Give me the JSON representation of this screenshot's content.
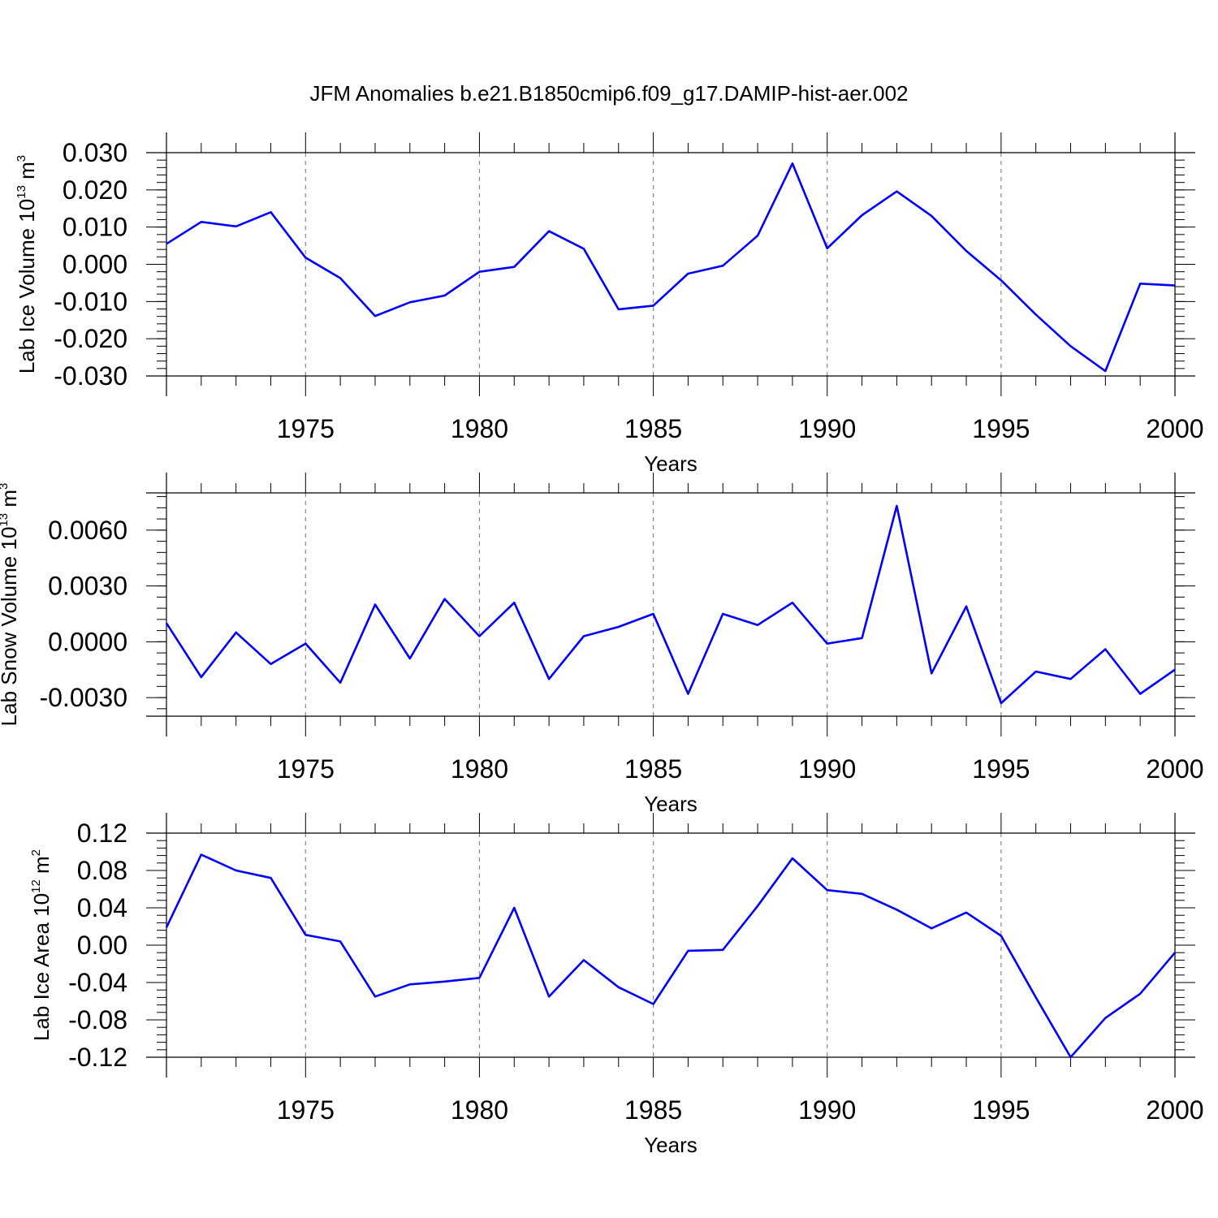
{
  "title": "JFM Anomalies b.e21.B1850cmip6.f09_g17.DAMIP-hist-aer.002",
  "colors": {
    "line": "#0000ff",
    "axis": "#000000",
    "grid": "#888888"
  },
  "chart_data": [
    {
      "type": "line",
      "xlabel": "Years",
      "ylabel": {
        "text": "Lab Ice Volume 10",
        "exp": "13",
        "unit": " m",
        "unit_exp": "3"
      },
      "xlim": [
        1971,
        2000
      ],
      "ylim": [
        -0.03,
        0.03
      ],
      "xticks": [
        1975,
        1980,
        1985,
        1990,
        1995,
        2000
      ],
      "ytick_labels": [
        "0.030",
        "0.020",
        "0.010",
        "0.000",
        "-0.010",
        "-0.020",
        "-0.030"
      ],
      "ytick_values": [
        0.03,
        0.02,
        0.01,
        0.0,
        -0.01,
        -0.02,
        -0.03
      ],
      "grid": "dashed vertical at major x ticks",
      "x": [
        1971,
        1972,
        1973,
        1974,
        1975,
        1976,
        1977,
        1978,
        1979,
        1980,
        1981,
        1982,
        1983,
        1984,
        1985,
        1986,
        1987,
        1988,
        1989,
        1990,
        1991,
        1992,
        1993,
        1994,
        1995,
        1996,
        1997,
        1998,
        1999,
        2000
      ],
      "y": [
        0.0055,
        0.0114,
        0.0102,
        0.014,
        0.0018,
        -0.0037,
        -0.0139,
        -0.0102,
        -0.0084,
        -0.002,
        -0.0007,
        0.0089,
        0.0042,
        -0.0121,
        -0.0111,
        -0.0025,
        -0.0004,
        0.0077,
        0.0271,
        0.0043,
        0.0132,
        0.0196,
        0.013,
        0.0036,
        -0.0043,
        -0.0135,
        -0.022,
        -0.0287,
        -0.0052,
        -0.0057
      ]
    },
    {
      "type": "line",
      "xlabel": "Years",
      "ylabel": {
        "text": "Lab Snow Volume 10",
        "exp": "13",
        "unit": " m",
        "unit_exp": "3"
      },
      "xlim": [
        1971,
        2000
      ],
      "ylim": [
        -0.004,
        0.008
      ],
      "xticks": [
        1975,
        1980,
        1985,
        1990,
        1995,
        2000
      ],
      "ytick_labels": [
        "0.0060",
        "0.0030",
        "0.0000",
        "-0.0030"
      ],
      "ytick_values": [
        0.006,
        0.003,
        0.0,
        -0.003
      ],
      "grid": "dashed vertical at major x ticks",
      "x": [
        1971,
        1972,
        1973,
        1974,
        1975,
        1976,
        1977,
        1978,
        1979,
        1980,
        1981,
        1982,
        1983,
        1984,
        1985,
        1986,
        1987,
        1988,
        1989,
        1990,
        1991,
        1992,
        1993,
        1994,
        1995,
        1996,
        1997,
        1998,
        1999,
        2000
      ],
      "y": [
        0.001,
        -0.0019,
        0.0005,
        -0.0012,
        -0.0001,
        -0.0022,
        0.002,
        -0.0009,
        0.0023,
        0.0003,
        0.0021,
        -0.002,
        0.0003,
        0.0008,
        0.0015,
        -0.0028,
        0.0015,
        0.0009,
        0.0021,
        -0.0001,
        0.0002,
        0.0073,
        -0.0017,
        0.0019,
        -0.0033,
        -0.0016,
        -0.002,
        -0.0004,
        -0.0028,
        -0.0015
      ]
    },
    {
      "type": "line",
      "xlabel": "Years",
      "ylabel": {
        "text": "Lab Ice Area 10",
        "exp": "12",
        "unit": " m",
        "unit_exp": "2"
      },
      "xlim": [
        1971,
        2000
      ],
      "ylim": [
        -0.12,
        0.12
      ],
      "xticks": [
        1975,
        1980,
        1985,
        1990,
        1995,
        2000
      ],
      "ytick_labels": [
        "0.12",
        "0.08",
        "0.04",
        "0.00",
        "-0.04",
        "-0.08",
        "-0.12"
      ],
      "ytick_values": [
        0.12,
        0.08,
        0.04,
        0.0,
        -0.04,
        -0.08,
        -0.12
      ],
      "grid": "dashed vertical at major x ticks",
      "x": [
        1971,
        1972,
        1973,
        1974,
        1975,
        1976,
        1977,
        1978,
        1979,
        1980,
        1981,
        1982,
        1983,
        1984,
        1985,
        1986,
        1987,
        1988,
        1989,
        1990,
        1991,
        1992,
        1993,
        1994,
        1995,
        1996,
        1997,
        1998,
        1999,
        2000
      ],
      "y": [
        0.019,
        0.097,
        0.08,
        0.072,
        0.011,
        0.004,
        -0.055,
        -0.042,
        -0.039,
        -0.035,
        0.04,
        -0.055,
        -0.016,
        -0.045,
        -0.063,
        -0.006,
        -0.005,
        0.042,
        0.093,
        0.059,
        0.055,
        0.038,
        0.018,
        0.035,
        0.01,
        -0.056,
        -0.12,
        -0.078,
        -0.052,
        -0.008
      ]
    }
  ]
}
